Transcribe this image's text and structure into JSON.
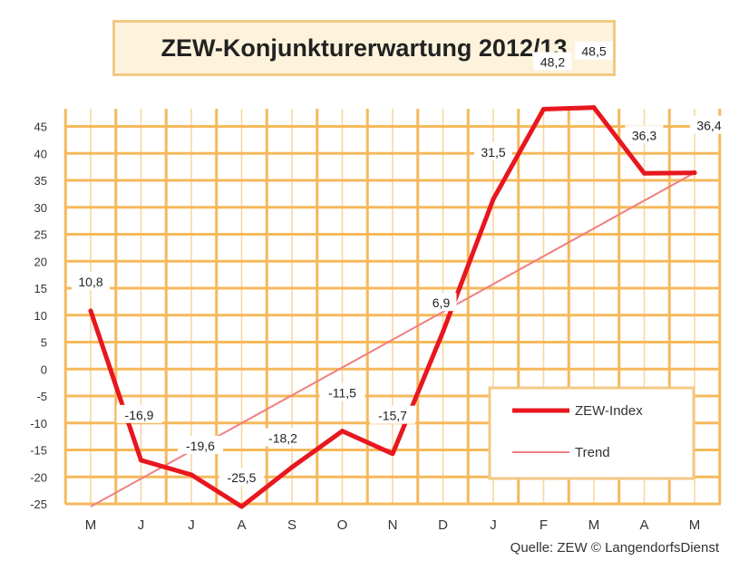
{
  "chart_data": {
    "type": "line",
    "title": "ZEW-Konjunkturerwartung 2012/13",
    "source": "Quelle: ZEW © LangendorfsDienst",
    "categories": [
      "M",
      "J",
      "J",
      "A",
      "S",
      "O",
      "N",
      "D",
      "J",
      "F",
      "M",
      "A",
      "M"
    ],
    "series": [
      {
        "name": "ZEW-Index",
        "color": "#e8171f",
        "values": [
          10.8,
          -16.9,
          -19.6,
          -25.5,
          -18.2,
          -11.5,
          -15.7,
          6.9,
          31.5,
          48.2,
          48.5,
          36.3,
          36.4
        ]
      },
      {
        "name": "Trend",
        "color": "#f08080",
        "values_linear": [
          -25.5,
          36.4
        ]
      }
    ],
    "data_labels": [
      "10,8",
      "-16,9",
      "-19,6",
      "-25,5",
      "-18,2",
      "-11,5",
      "-15,7",
      "6,9",
      "31,5",
      "48,2",
      "48,5",
      "36,3",
      "36,4"
    ],
    "yticks": [
      45,
      40,
      35,
      30,
      25,
      20,
      15,
      10,
      5,
      0,
      -5,
      -10,
      -15,
      -20,
      -25
    ],
    "ylim": [
      -25,
      48
    ],
    "grid": true,
    "legend_position": "bottom-right",
    "colors": {
      "grid": "#f5b95c",
      "plot_bg": "#ffffff",
      "title_border": "#f2c985",
      "legend_border": "#f2c985"
    }
  }
}
